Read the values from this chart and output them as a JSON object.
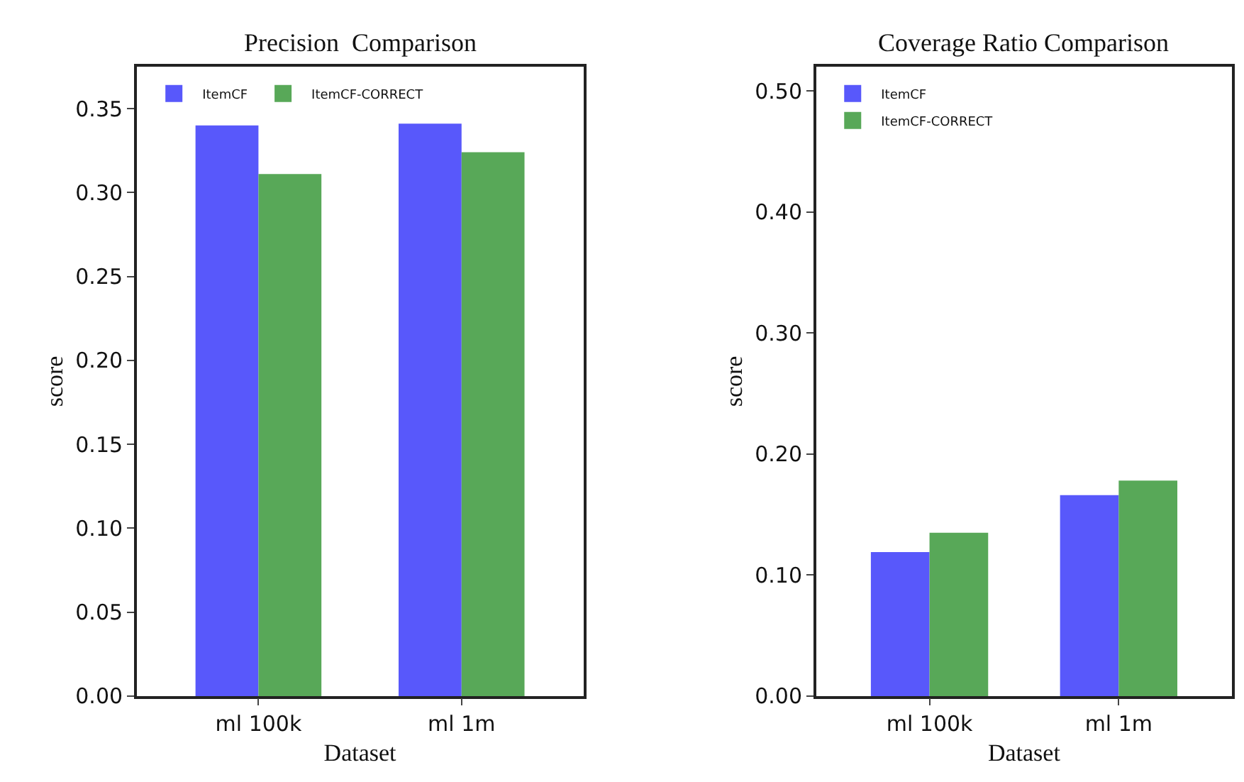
{
  "chart_data": [
    {
      "type": "bar",
      "title": "Precision  Comparison",
      "xlabel": "Dataset",
      "ylabel": "score",
      "categories": [
        "ml 100k",
        "ml 1m"
      ],
      "series": [
        {
          "name": "ItemCF",
          "color": "#5858fb",
          "values": [
            0.34,
            0.341
          ]
        },
        {
          "name": "ItemCF-CORRECT",
          "color": "#58a858",
          "values": [
            0.311,
            0.324
          ]
        }
      ],
      "ylim": [
        0,
        0.375
      ],
      "yticks": [
        {
          "value": 0,
          "label": "0.00"
        },
        0.05,
        {
          "value": 0.1,
          "label": "0.10"
        },
        0.15,
        {
          "value": 0.2,
          "label": "0.20"
        },
        0.25,
        {
          "value": 0.3,
          "label": "0.30"
        },
        0.35
      ],
      "legend": "top left"
    },
    {
      "type": "bar",
      "title": "Coverage Ratio Comparison",
      "xlabel": "Dataset",
      "ylabel": "score",
      "categories": [
        "ml 100k",
        "ml 1m"
      ],
      "series": [
        {
          "name": "ItemCF",
          "color": "#5858fb",
          "values": [
            0.119,
            0.166
          ]
        },
        {
          "name": "ItemCF-CORRECT",
          "color": "#58a858",
          "values": [
            0.135,
            0.178
          ]
        }
      ],
      "ylim": [
        0,
        0.52
      ],
      "yticks": [
        {
          "value": 0,
          "label": "0.00"
        },
        {
          "value": 0.1,
          "label": "0.10"
        },
        {
          "value": 0.2,
          "label": "0.20"
        },
        {
          "value": 0.3,
          "label": "0.30"
        },
        {
          "value": 0.4,
          "label": "0.40"
        },
        {
          "value": 0.5,
          "label": "0.50"
        }
      ],
      "legend": "top left"
    }
  ]
}
